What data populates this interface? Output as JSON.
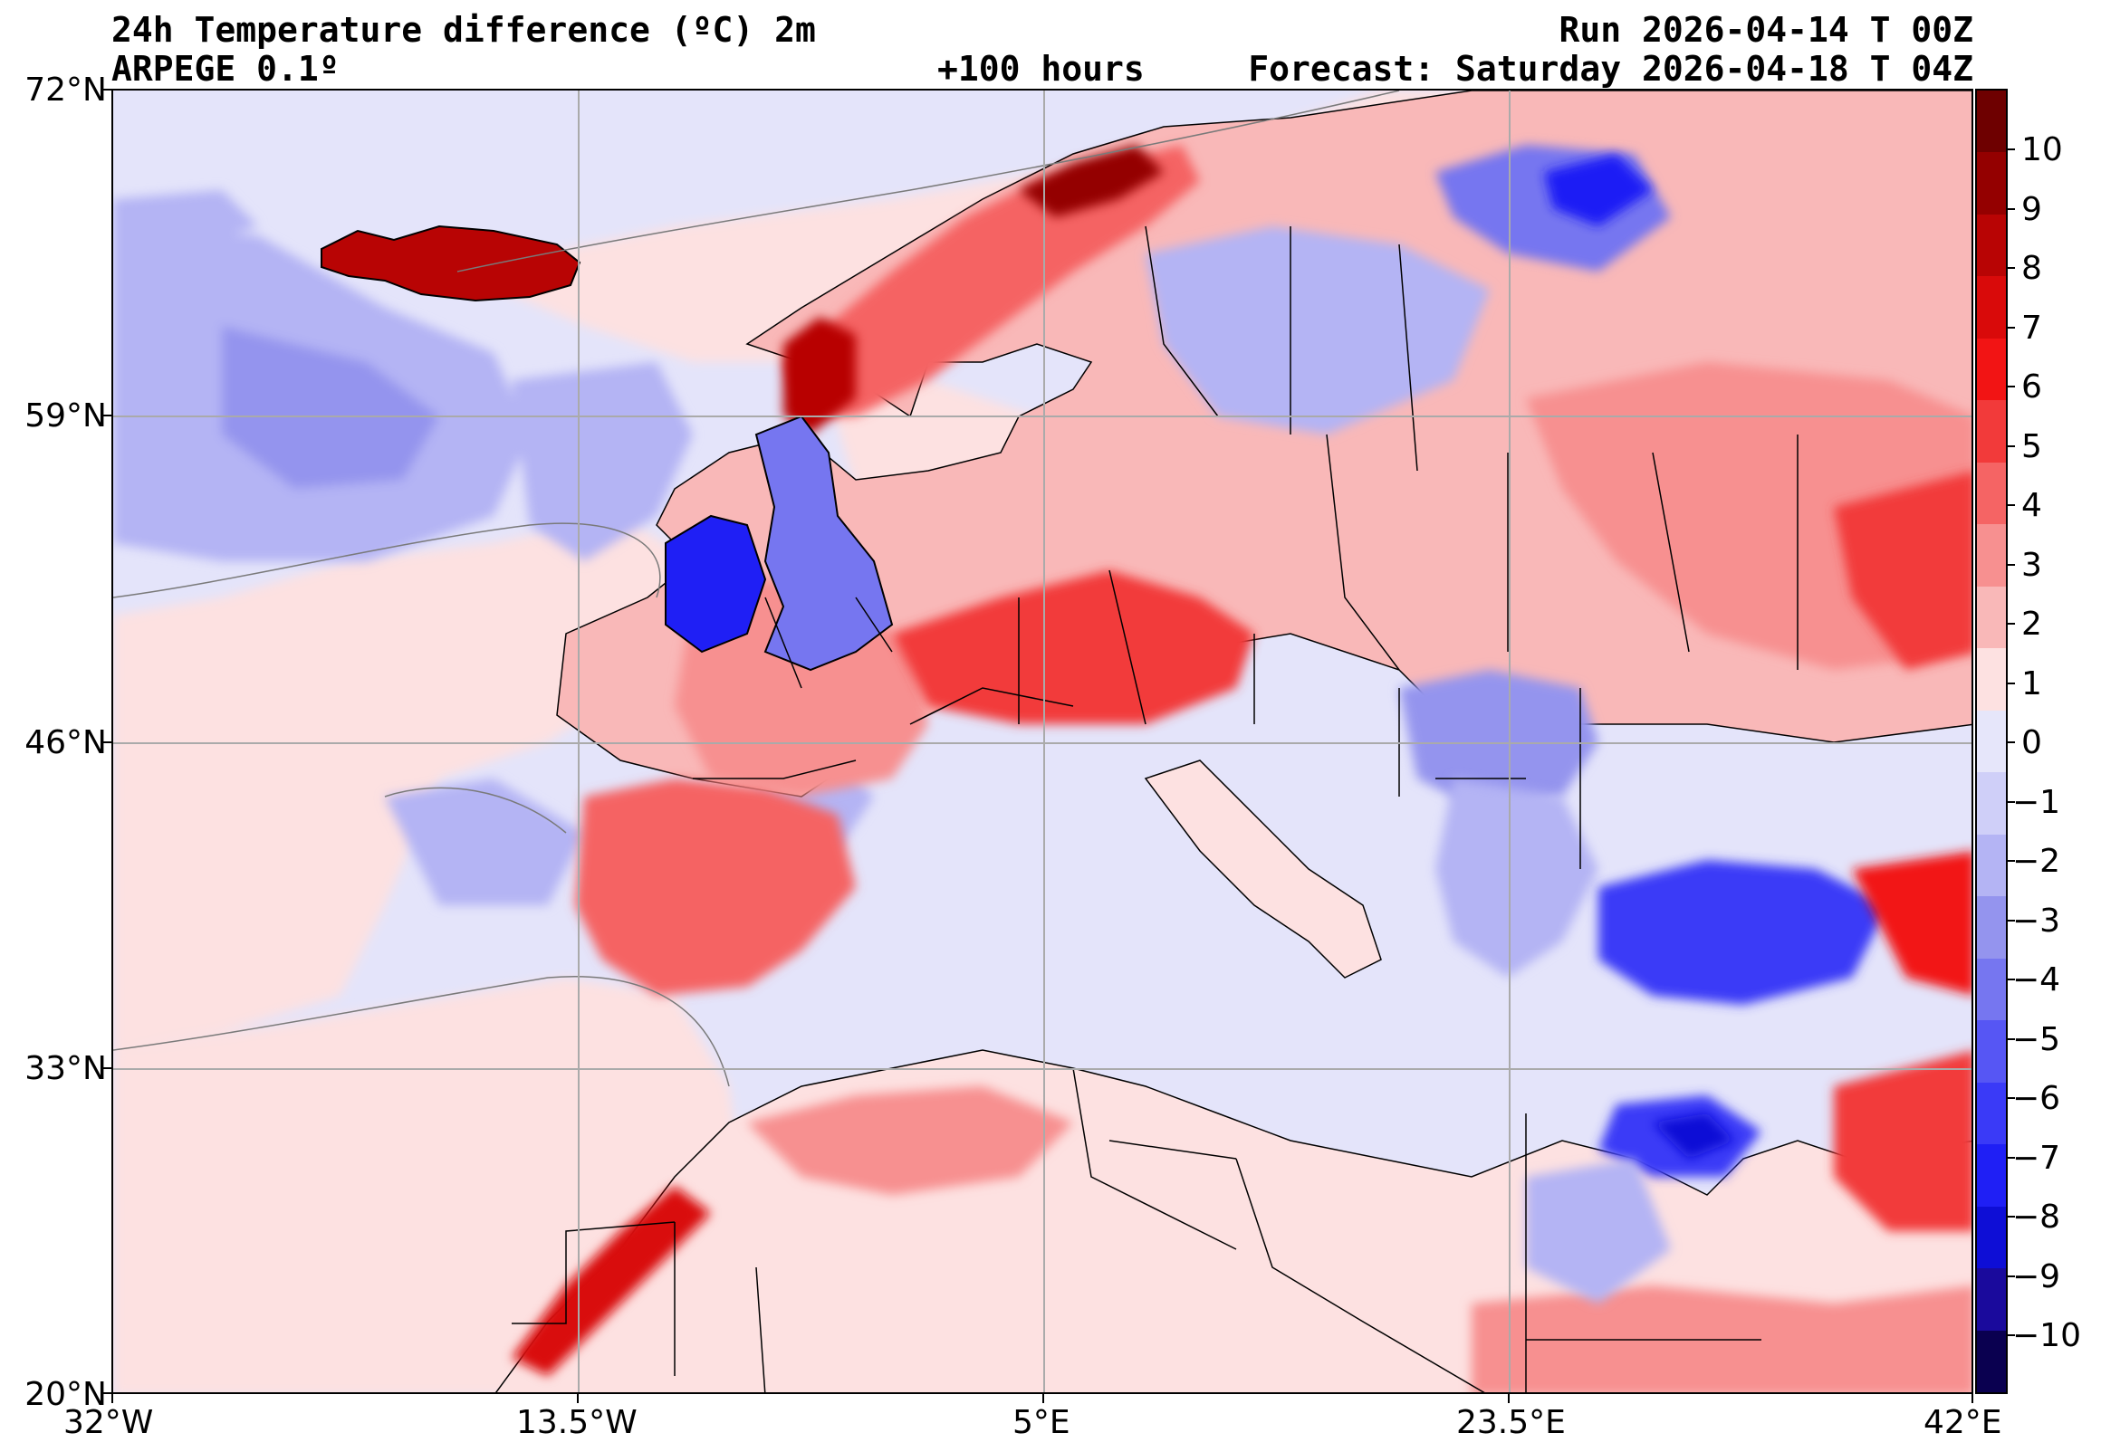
{
  "header": {
    "title": "24h Temperature difference (ºC) 2m",
    "model": "ARPEGE 0.1º",
    "lead": "+100 hours",
    "run": "Run 2026-04-14 T 00Z",
    "forecast": "Forecast: Saturday 2026-04-18 T 04Z"
  },
  "axes": {
    "lat_labels": [
      "72°N",
      "59°N",
      "46°N",
      "33°N",
      "20°N"
    ],
    "lon_labels": [
      "32°W",
      "13.5°W",
      "5°E",
      "23.5°E",
      "42°E"
    ]
  },
  "colorbar": {
    "labels": [
      "10",
      "9",
      "8",
      "7",
      "6",
      "5",
      "4",
      "3",
      "2",
      "1",
      "0",
      "−1",
      "−2",
      "−3",
      "−4",
      "−5",
      "−6",
      "−7",
      "−8",
      "−9",
      "−10"
    ],
    "colors": [
      "#0a0050",
      "#1a0a9c",
      "#0e0ed6",
      "#1f1ff5",
      "#3a3af7",
      "#5656f4",
      "#7676f0",
      "#9494ee",
      "#b4b4f4",
      "#cfcff8",
      "#e6e6fa",
      "#fde1e1",
      "#f9b8b8",
      "#f79090",
      "#f56464",
      "#f23a3a",
      "#f21414",
      "#d90a0a",
      "#b80404",
      "#940000",
      "#6e0000"
    ]
  },
  "map": {
    "extent": {
      "lon_min": -32,
      "lon_max": 42,
      "lat_min": 20,
      "lat_max": 72
    },
    "gridlines_lon": [
      -13.5,
      5,
      23.5
    ],
    "gridlines_lat": [
      59,
      46,
      33
    ]
  }
}
